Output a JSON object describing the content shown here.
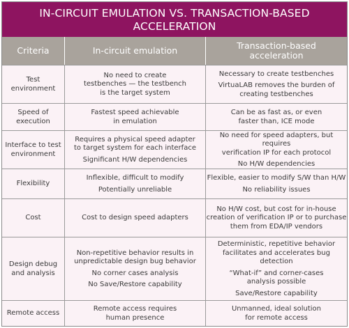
{
  "title": {
    "line1": "IN-CIRCUIT EMULATION VS. TRANSACTION-BASED",
    "line2": "ACCELERATION"
  },
  "headers": {
    "criteria": "Criteria",
    "ice": "In-circuit emulation",
    "tba_line1": "Transaction-based",
    "tba_line2": "acceleration"
  },
  "rows": [
    {
      "criteria": [
        "Test",
        "environment"
      ],
      "ice": [
        [
          "No need to create",
          "testbenches — the testbench",
          "is the target system"
        ]
      ],
      "tba": [
        [
          "Necessary to create testbenches"
        ],
        [
          "VirtuaLAB removes the burden of",
          "creating testbenches"
        ]
      ]
    },
    {
      "criteria": [
        "Speed of",
        "execution"
      ],
      "ice": [
        [
          "Fastest speed achievable",
          "in emulation"
        ]
      ],
      "tba": [
        [
          "Can be as fast as, or even",
          "faster than, ICE mode"
        ]
      ]
    },
    {
      "criteria": [
        "Interface to test",
        "environment"
      ],
      "ice": [
        [
          "Requires a physical speed adapter",
          "to target system for each interface"
        ],
        [
          "Significant H/W dependencies"
        ]
      ],
      "tba": [
        [
          "No need for speed adapters, but requires",
          "verification IP for each protocol"
        ],
        [
          "No H/W dependencies"
        ]
      ]
    },
    {
      "criteria": [
        "Flexibility"
      ],
      "ice": [
        [
          "Inflexible, difficult to modify"
        ],
        [
          "Potentially unreliable"
        ]
      ],
      "tba": [
        [
          "Flexible, easier to modify S/W than H/W"
        ],
        [
          "No reliability issues"
        ]
      ]
    },
    {
      "criteria": [
        "Cost"
      ],
      "ice": [
        [
          "Cost to design speed adapters"
        ]
      ],
      "tba": [
        [
          "No H/W cost, but cost for in-house",
          "creation of verification IP or to purchase",
          "them from EDA/IP vendors"
        ]
      ]
    },
    {
      "criteria": [
        "Design debug",
        "and analysis"
      ],
      "ice": [
        [
          "Non-repetitive behavior results in",
          "unpredictable design bug behavior"
        ],
        [
          "No corner cases analysis"
        ],
        [
          "No Save/Restore capability"
        ]
      ],
      "tba": [
        [
          "Deterministic, repetitive behavior",
          "facilitates and accelerates bug detection"
        ],
        [
          "“What-if” and corner-cases",
          "analysis possible"
        ],
        [
          "Save/Restore capability"
        ]
      ]
    },
    {
      "criteria": [
        "Remote access"
      ],
      "ice": [
        [
          "Remote access requires",
          "human presence"
        ]
      ],
      "tba": [
        [
          "Unmanned, ideal solution",
          "for remote access"
        ]
      ]
    }
  ]
}
